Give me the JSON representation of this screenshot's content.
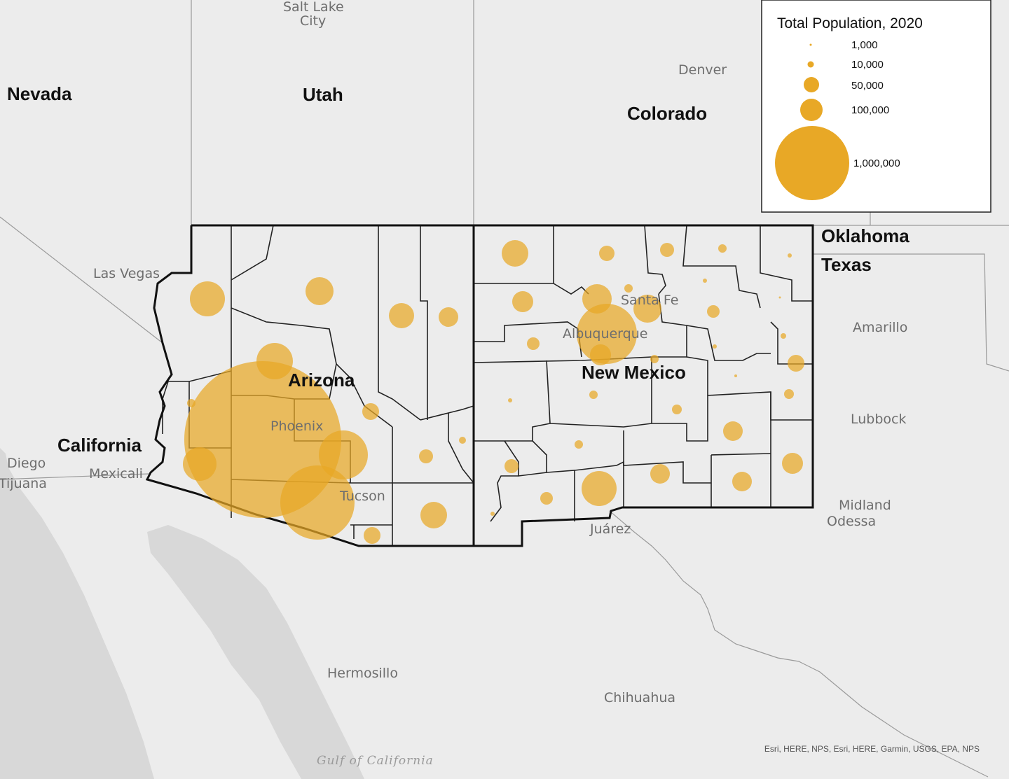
{
  "legend": {
    "title": "Total Population, 2020",
    "items": [
      {
        "label": "1,000",
        "value": 1000
      },
      {
        "label": "10,000",
        "value": 10000
      },
      {
        "label": "50,000",
        "value": 50000
      },
      {
        "label": "100,000",
        "value": 100000
      },
      {
        "label": "1,000,000",
        "value": 1000000
      }
    ],
    "color": "#e8a826"
  },
  "states": [
    "Nevada",
    "Utah",
    "Colorado",
    "Oklahoma",
    "Texas",
    "Arizona",
    "New Mexico",
    "California"
  ],
  "cities": [
    "Salt Lake City",
    "Denver",
    "Las Vegas",
    "Santa Fe",
    "Albuquerque",
    "Amarillo",
    "Lubbock",
    "Phoenix",
    "Tucson",
    "Diego",
    "Tijuana",
    "Mexicali",
    "Midland",
    "Odessa",
    "Juárez",
    "Hermosillo",
    "Chihuahua"
  ],
  "water": [
    "Gulf of California"
  ],
  "attribution": "Esri, HERE, NPS, Esri, HERE, Garmin, USGS, EPA, NPS",
  "colors": {
    "land": "#ececec",
    "county_line": "#222222",
    "bubble": "#e8a826",
    "basemap_border": "#9a9a9a"
  }
}
